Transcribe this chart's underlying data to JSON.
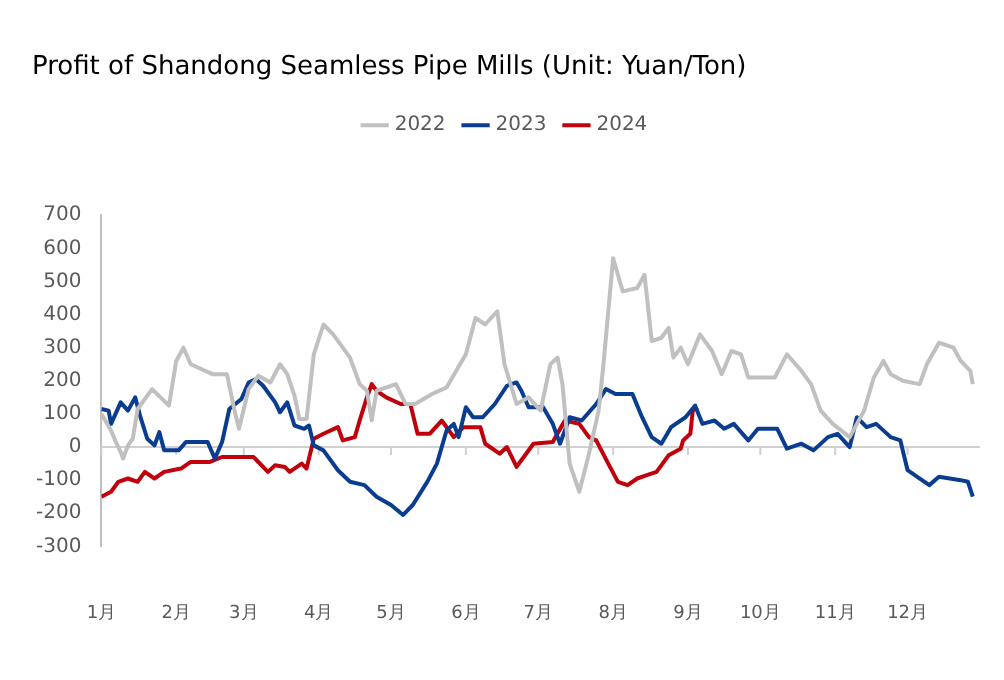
{
  "chart_data": {
    "type": "line",
    "title": "Profit of Shandong Seamless Pipe Mills (Unit: Yuan/Ton)",
    "legend": "top",
    "grid": false,
    "marker": "none",
    "line_style": "solid",
    "xlim": [
      "--01-01",
      "--12-31"
    ],
    "xticks": [
      {
        "value": "--01-01",
        "label": "1月"
      },
      {
        "value": "--02-01",
        "label": "2月"
      },
      {
        "value": "--03-01",
        "label": "3月"
      },
      {
        "value": "--04-01",
        "label": "4月"
      },
      {
        "value": "--05-01",
        "label": "5月"
      },
      {
        "value": "--06-01",
        "label": "6月"
      },
      {
        "value": "--07-01",
        "label": "7月"
      },
      {
        "value": "--08-01",
        "label": "8月"
      },
      {
        "value": "--09-01",
        "label": "9月"
      },
      {
        "value": "--10-01",
        "label": "10月"
      },
      {
        "value": "--11-01",
        "label": "11月"
      },
      {
        "value": "--12-01",
        "label": "12月"
      }
    ],
    "ref_lines": [
      {
        "axis": "y",
        "value": 0,
        "color": "#d0d0d0"
      }
    ],
    "ylim": [
      -300,
      700
    ],
    "yticks": [
      -300,
      -200,
      -100,
      0,
      100,
      200,
      300,
      400,
      500,
      600,
      700
    ],
    "series": [
      {
        "name": "2022",
        "color": "#c0c0c0",
        "x": [
          "--01-01",
          "--01-05",
          "--01-07",
          "--01-09",
          "--01-10",
          "--01-12",
          "--01-14",
          "--01-16",
          "--01-22",
          "--01-29",
          "--02-01",
          "--02-04",
          "--02-07",
          "--02-16",
          "--02-22",
          "--02-25",
          "--02-27",
          "--03-03",
          "--03-07",
          "--03-12",
          "--03-16",
          "--03-19",
          "--03-22",
          "--03-24",
          "--03-27",
          "--03-30",
          "--04-03",
          "--04-07",
          "--04-11",
          "--04-14",
          "--04-18",
          "--04-21",
          "--04-23",
          "--04-25",
          "--05-03",
          "--05-07",
          "--05-11",
          "--05-18",
          "--05-24",
          "--05-28",
          "--06-01",
          "--06-05",
          "--06-09",
          "--06-14",
          "--06-17",
          "--06-22",
          "--06-27",
          "--07-02",
          "--07-06",
          "--07-09",
          "--07-11",
          "--07-14",
          "--07-18",
          "--07-22",
          "--07-26",
          "--07-28",
          "--08-01",
          "--08-05",
          "--08-11",
          "--08-14",
          "--08-17",
          "--08-21",
          "--08-24",
          "--08-26",
          "--08-29",
          "--09-01",
          "--09-06",
          "--09-11",
          "--09-15",
          "--09-19",
          "--09-23",
          "--09-26",
          "--10-07",
          "--10-12",
          "--10-18",
          "--10-22",
          "--10-26",
          "--10-31",
          "--11-07",
          "--11-13",
          "--11-17",
          "--11-21",
          "--11-24",
          "--11-29",
          "--12-06",
          "--12-09",
          "--12-14",
          "--12-20",
          "--12-23",
          "--12-27",
          "--12-28"
        ],
        "values": [
          100,
          50,
          15,
          -15,
          -35,
          5,
          25,
          115,
          175,
          125,
          260,
          300,
          250,
          220,
          220,
          115,
          55,
          175,
          215,
          195,
          250,
          220,
          155,
          85,
          85,
          280,
          370,
          340,
          300,
          270,
          190,
          170,
          80,
          170,
          190,
          130,
          130,
          160,
          180,
          230,
          280,
          390,
          370,
          410,
          250,
          130,
          150,
          110,
          250,
          270,
          190,
          -50,
          -135,
          -20,
          110,
          250,
          570,
          470,
          480,
          520,
          320,
          330,
          360,
          270,
          300,
          250,
          340,
          290,
          220,
          290,
          280,
          210,
          210,
          280,
          230,
          190,
          110,
          70,
          30,
          110,
          210,
          260,
          220,
          200,
          190,
          250,
          315,
          300,
          260,
          230,
          190
        ]
      },
      {
        "name": "2023",
        "color": "#0a3d8f",
        "x": [
          "--01-01",
          "--01-04",
          "--01-05",
          "--01-09",
          "--01-12",
          "--01-15",
          "--01-17",
          "--01-20",
          "--01-23",
          "--01-25",
          "--01-27",
          "--02-02",
          "--02-05",
          "--02-14",
          "--02-17",
          "--02-20",
          "--02-23",
          "--02-28",
          "--03-03",
          "--03-06",
          "--03-09",
          "--03-14",
          "--03-16",
          "--03-19",
          "--03-22",
          "--03-26",
          "--03-28",
          "--03-30",
          "--04-03",
          "--04-09",
          "--04-14",
          "--04-20",
          "--04-25",
          "--05-01",
          "--05-06",
          "--05-10",
          "--05-16",
          "--05-20",
          "--05-24",
          "--05-27",
          "--05-29",
          "--06-01",
          "--06-04",
          "--06-08",
          "--06-13",
          "--06-18",
          "--06-22",
          "--06-24",
          "--06-27",
          "--07-03",
          "--07-07",
          "--07-10",
          "--07-14",
          "--07-19",
          "--07-25",
          "--07-29",
          "--08-02",
          "--08-09",
          "--08-13",
          "--08-17",
          "--08-21",
          "--08-25",
          "--08-31",
          "--09-04",
          "--09-07",
          "--09-12",
          "--09-16",
          "--09-20",
          "--09-26",
          "--09-30",
          "--10-08",
          "--10-12",
          "--10-18",
          "--10-23",
          "--10-29",
          "--11-02",
          "--11-07",
          "--11-10",
          "--11-14",
          "--11-18",
          "--11-24",
          "--11-28",
          "--12-01",
          "--12-05",
          "--12-10",
          "--12-14",
          "--12-23",
          "--12-26",
          "--12-28"
        ],
        "values": [
          115,
          110,
          70,
          135,
          110,
          150,
          95,
          25,
          5,
          45,
          -10,
          -10,
          15,
          15,
          -35,
          15,
          115,
          145,
          195,
          205,
          185,
          135,
          105,
          135,
          65,
          55,
          65,
          5,
          -10,
          -70,
          -105,
          -115,
          -150,
          -175,
          -205,
          -175,
          -105,
          -50,
          50,
          70,
          30,
          120,
          90,
          90,
          130,
          185,
          195,
          170,
          120,
          120,
          70,
          10,
          90,
          80,
          130,
          175,
          160,
          160,
          90,
          30,
          10,
          60,
          90,
          125,
          70,
          80,
          55,
          70,
          20,
          55,
          55,
          -5,
          10,
          -10,
          30,
          40,
          0,
          90,
          60,
          70,
          30,
          20,
          -70,
          -90,
          -115,
          -90,
          -100,
          -105,
          -150
        ]
      },
      {
        "name": "2024",
        "color": "#c0000b",
        "x": [
          "--01-01",
          "--01-05",
          "--01-08",
          "--01-12",
          "--01-16",
          "--01-19",
          "--01-23",
          "--01-27",
          "--02-03",
          "--02-07",
          "--02-15",
          "--02-20",
          "--03-05",
          "--03-11",
          "--03-14",
          "--03-18",
          "--03-20",
          "--03-25",
          "--03-27",
          "--03-30",
          "--04-03",
          "--04-09",
          "--04-11",
          "--04-16",
          "--04-18",
          "--04-21",
          "--04-23",
          "--04-25",
          "--04-29",
          "--05-05",
          "--05-09",
          "--05-12",
          "--05-17",
          "--05-22",
          "--05-27",
          "--05-31",
          "--06-07",
          "--06-09",
          "--06-15",
          "--06-18",
          "--06-22",
          "--06-24",
          "--06-29",
          "--07-07",
          "--07-12",
          "--07-18",
          "--07-22",
          "--07-25",
          "--07-30",
          "--08-03",
          "--08-07",
          "--08-11",
          "--08-15",
          "--08-19",
          "--08-24",
          "--08-29",
          "--08-30",
          "--09-02",
          "--09-03",
          "--09-05"
        ],
        "values": [
          -150,
          -135,
          -105,
          -95,
          -105,
          -75,
          -95,
          -75,
          -65,
          -45,
          -45,
          -30,
          -30,
          -75,
          -55,
          -60,
          -75,
          -50,
          -65,
          25,
          40,
          60,
          20,
          30,
          80,
          150,
          190,
          170,
          150,
          130,
          130,
          40,
          40,
          80,
          30,
          60,
          60,
          10,
          -20,
          0,
          -60,
          -40,
          10,
          15,
          80,
          70,
          30,
          20,
          -50,
          -105,
          -115,
          -95,
          -85,
          -75,
          -25,
          -5,
          20,
          40,
          110,
          120
        ]
      }
    ]
  }
}
